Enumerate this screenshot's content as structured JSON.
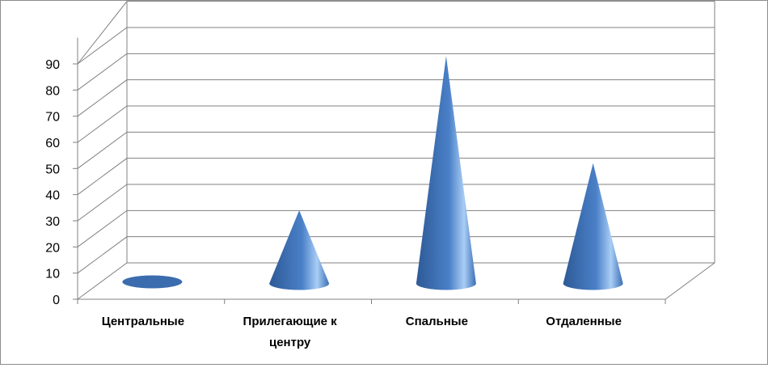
{
  "chart_data": {
    "type": "bar",
    "style": "3d-cone",
    "categories": [
      "Центральные",
      "Прилегающие к центру",
      "Спальные",
      "Отдаленные"
    ],
    "values": [
      0,
      28,
      87,
      46
    ],
    "ylim": [
      0,
      90
    ],
    "yticks": [
      0,
      10,
      20,
      30,
      40,
      50,
      60,
      70,
      80,
      90
    ],
    "grid": true,
    "legend": "none",
    "colors": {
      "cone_dark": "#2e5a96",
      "cone_mid": "#4a80c8",
      "cone_light": "#a9cdf5",
      "grid": "#808080"
    }
  }
}
